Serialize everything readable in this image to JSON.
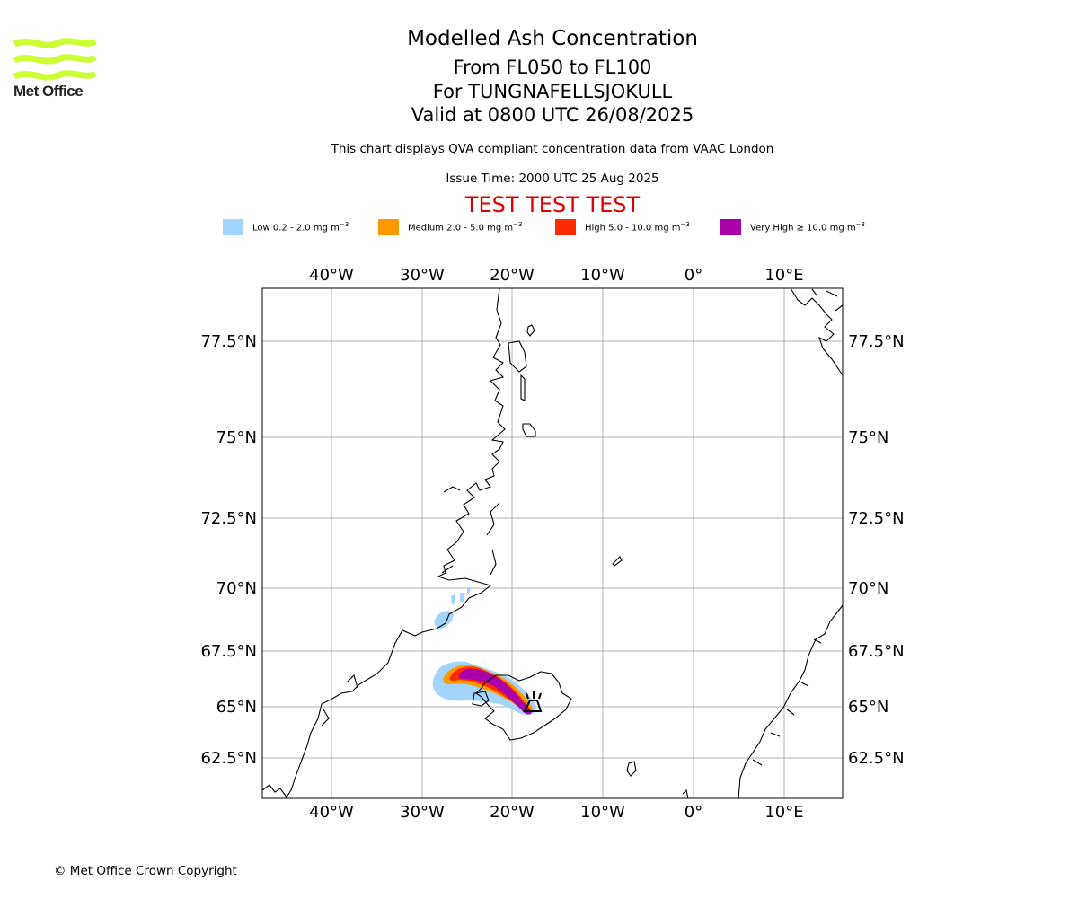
{
  "logo": {
    "text": "Met Office"
  },
  "title": {
    "line1": "Modelled Ash Concentration",
    "line2": "From FL050 to FL100",
    "line3": "For TUNGNAFELLSJOKULL",
    "line4": "Valid at 0800 UTC 26/08/2025"
  },
  "subtitle": "This chart displays QVA compliant concentration data from VAAC London",
  "issue_time": "Issue Time: 2000 UTC 25 Aug 2025",
  "test_banner": "TEST TEST TEST",
  "legend": [
    {
      "label": "Low 0.2 - 2.0 mg m",
      "exp": "−3",
      "color": "#a3d4fb"
    },
    {
      "label": "Medium 2.0 - 5.0 mg m",
      "exp": "−3",
      "color": "#ff9900"
    },
    {
      "label": "High 5.0 - 10.0 mg m",
      "exp": "−3",
      "color": "#ff2a00"
    },
    {
      "label": "Very High  ≥  10.0 mg m",
      "exp": "−3",
      "color": "#aa00aa"
    }
  ],
  "map": {
    "lon_labels": [
      "40°W",
      "30°W",
      "20°W",
      "10°W",
      "0°",
      "10°E"
    ],
    "lat_labels": [
      "77.5°N",
      "75°N",
      "72.5°N",
      "70°N",
      "67.5°N",
      "65°N",
      "62.5°N"
    ],
    "volcano_symbol": "volcano-icon"
  },
  "copyright": "© Met Office Crown Copyright"
}
